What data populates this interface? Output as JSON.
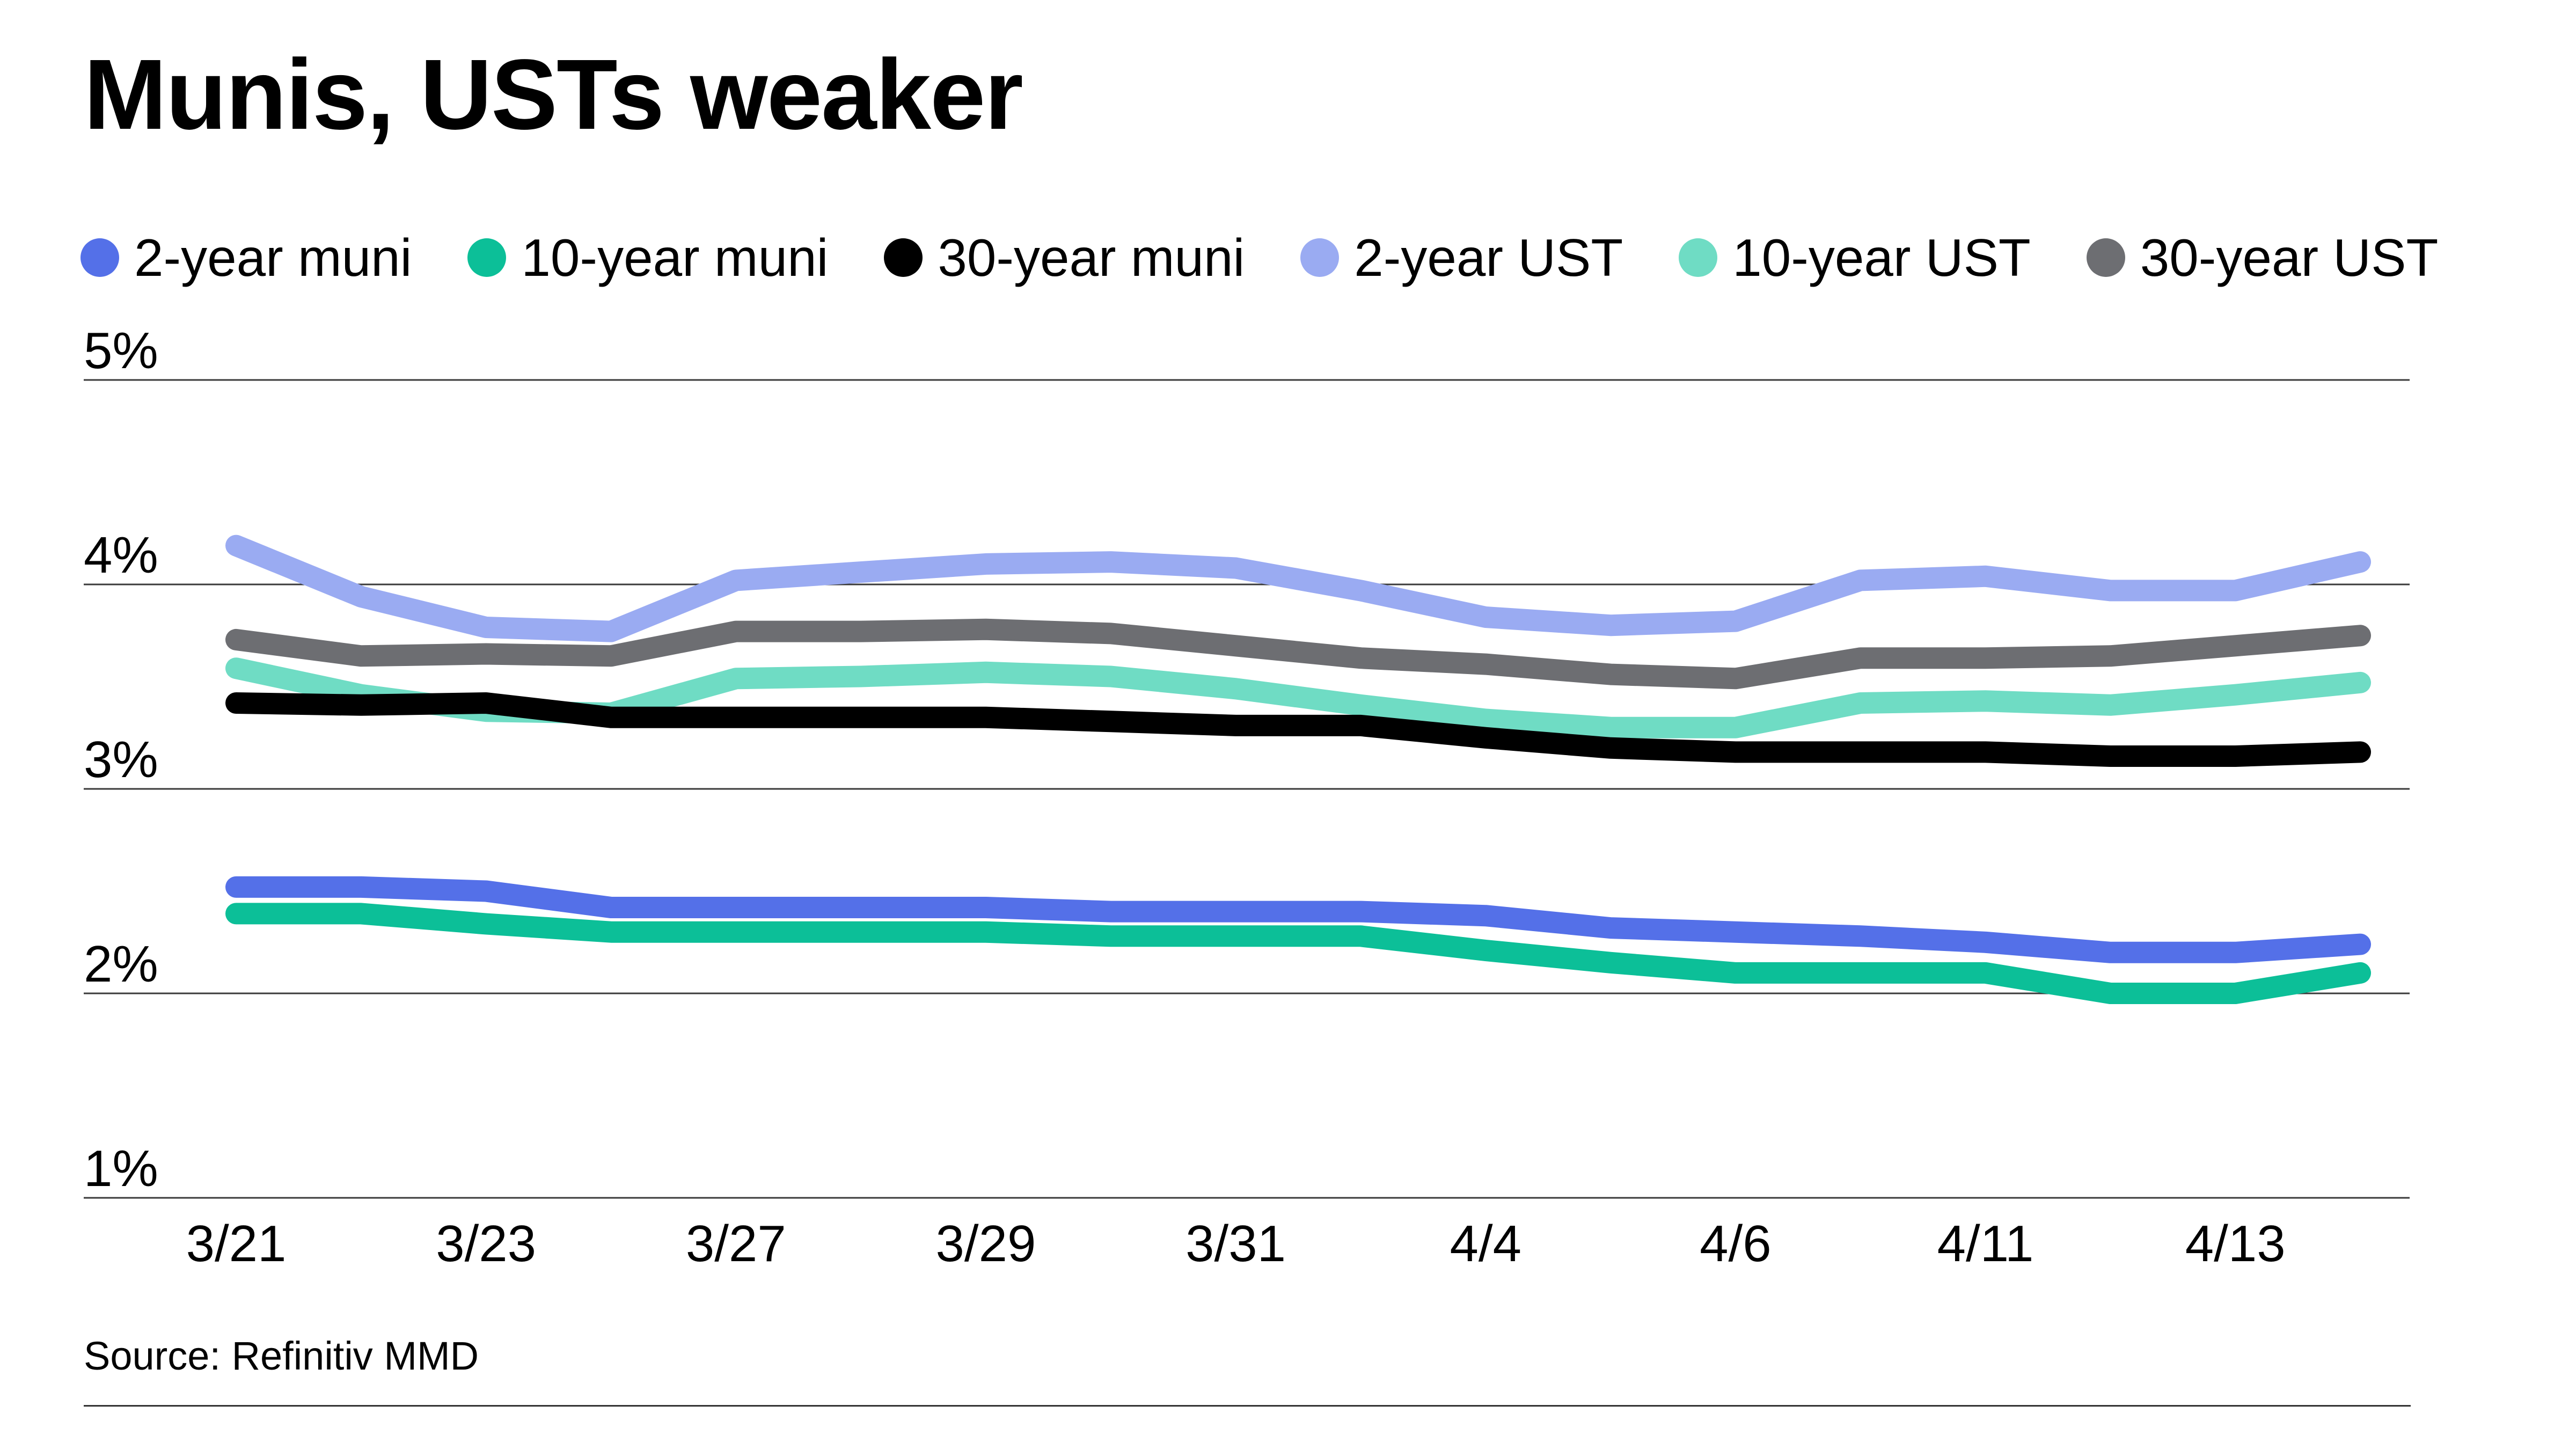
{
  "title": "Munis, USTs weaker",
  "source": "Source: Refinitiv MMD",
  "legend": [
    {
      "name": "2-year muni",
      "color": "#5470e8"
    },
    {
      "name": "10-year muni",
      "color": "#0cbf98"
    },
    {
      "name": "30-year muni",
      "color": "#000000"
    },
    {
      "name": "2-year UST",
      "color": "#9aabf2"
    },
    {
      "name": "10-year UST",
      "color": "#6fdcc4"
    },
    {
      "name": "30-year UST",
      "color": "#6d6e72"
    }
  ],
  "chart_data": {
    "type": "line",
    "title": "Munis, USTs weaker",
    "xlabel": "",
    "ylabel": "",
    "x_tick_labels": [
      "3/21",
      "3/23",
      "3/27",
      "3/29",
      "3/31",
      "4/4",
      "4/6",
      "4/11",
      "4/13"
    ],
    "y_tick_labels": [
      "5%",
      "4%",
      "3%",
      "2%",
      "1%"
    ],
    "y_ticks": [
      5,
      4,
      3,
      2,
      1
    ],
    "ylim": [
      1,
      5
    ],
    "grid": "horizontal",
    "legend_position": "top",
    "points_per_series": 18,
    "series": [
      {
        "name": "2-year UST",
        "color": "#9aabf2",
        "values": [
          4.19,
          3.94,
          3.79,
          3.77,
          4.02,
          4.06,
          4.1,
          4.11,
          4.08,
          3.97,
          3.84,
          3.8,
          3.82,
          4.02,
          4.04,
          3.97,
          3.97,
          4.11
        ]
      },
      {
        "name": "30-year UST",
        "color": "#6d6e72",
        "values": [
          3.73,
          3.65,
          3.66,
          3.65,
          3.77,
          3.77,
          3.78,
          3.76,
          3.7,
          3.64,
          3.61,
          3.56,
          3.54,
          3.64,
          3.64,
          3.65,
          3.7,
          3.75
        ]
      },
      {
        "name": "10-year UST",
        "color": "#6fdcc4",
        "values": [
          3.59,
          3.46,
          3.38,
          3.37,
          3.54,
          3.55,
          3.57,
          3.55,
          3.49,
          3.41,
          3.34,
          3.3,
          3.3,
          3.42,
          3.43,
          3.41,
          3.46,
          3.52
        ]
      },
      {
        "name": "30-year muni",
        "color": "#000000",
        "values": [
          3.42,
          3.41,
          3.42,
          3.35,
          3.35,
          3.35,
          3.35,
          3.33,
          3.31,
          3.31,
          3.25,
          3.2,
          3.18,
          3.18,
          3.18,
          3.16,
          3.16,
          3.18
        ]
      },
      {
        "name": "2-year muni",
        "color": "#5470e8",
        "values": [
          2.52,
          2.52,
          2.5,
          2.42,
          2.42,
          2.42,
          2.42,
          2.4,
          2.4,
          2.4,
          2.38,
          2.32,
          2.3,
          2.28,
          2.25,
          2.2,
          2.2,
          2.24
        ]
      },
      {
        "name": "10-year muni",
        "color": "#0cbf98",
        "values": [
          2.39,
          2.39,
          2.34,
          2.3,
          2.3,
          2.3,
          2.3,
          2.28,
          2.28,
          2.28,
          2.21,
          2.15,
          2.1,
          2.1,
          2.1,
          2.0,
          2.0,
          2.1
        ]
      }
    ]
  }
}
